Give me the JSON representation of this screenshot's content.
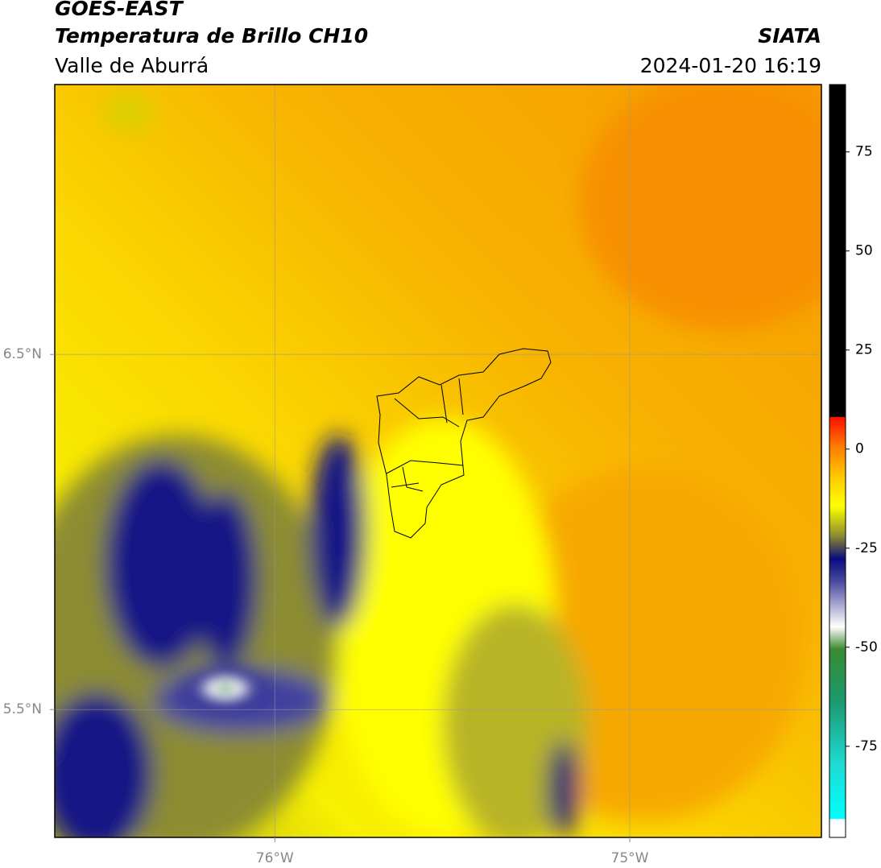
{
  "map": {
    "title": "GOES-EAST",
    "subtitle": "Temperatura de Brillo CH10",
    "region": "Valle de Aburrá",
    "source": "SIATA",
    "datetime": "2024-01-20 16:19",
    "lon_lim": [
      -76.62,
      -74.46
    ],
    "lat_lim": [
      5.14,
      7.26
    ],
    "lon_ticks": [
      {
        "value": -76,
        "label": "76°W"
      },
      {
        "value": -75,
        "label": "75°W"
      }
    ],
    "lat_ticks": [
      {
        "value": 6.5,
        "label": "6.5°N"
      },
      {
        "value": 5.5,
        "label": "5.5°N"
      }
    ],
    "grid": true,
    "colorbar": {
      "lim": [
        -98,
        92
      ],
      "ticks": [
        75,
        50,
        25,
        0,
        -25,
        -50,
        -75
      ]
    }
  }
}
